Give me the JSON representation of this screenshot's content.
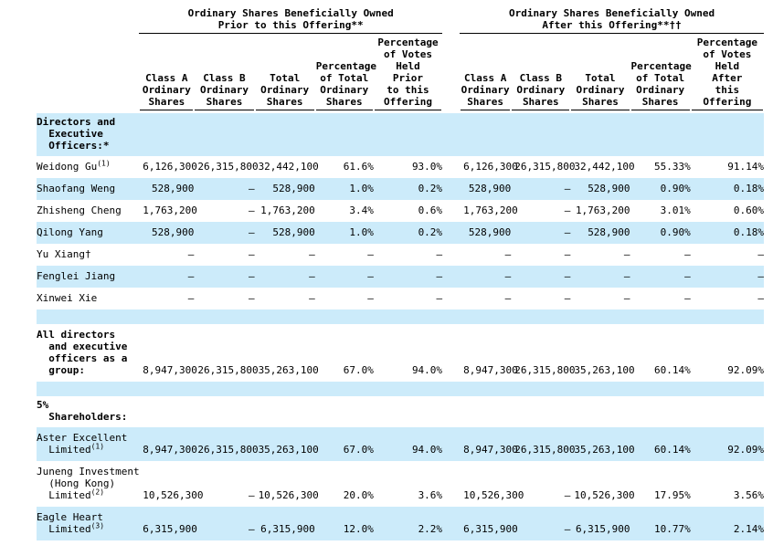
{
  "table": {
    "colors": {
      "row_shade": "#CCEBFA",
      "text": "#000000",
      "rule": "#000000"
    },
    "group_headers": [
      {
        "title": "Ordinary Shares Beneficially Owned\nPrior to this Offering**"
      },
      {
        "title": "Ordinary Shares Beneficially Owned\nAfter this Offering**††"
      }
    ],
    "columns": [
      "Class A\nOrdinary\nShares",
      "Class B\nOrdinary\nShares",
      "Total\nOrdinary\nShares",
      "Percentage\nof Total\nOrdinary\nShares",
      "Percentage\nof Votes\nHeld\nPrior\nto this\nOffering",
      "Class A\nOrdinary\nShares",
      "Class B\nOrdinary\nShares",
      "Total\nOrdinary\nShares",
      "Percentage\nof Total\nOrdinary\nShares",
      "Percentage\nof Votes\nHeld\nAfter\nthis\nOffering"
    ],
    "rows": [
      {
        "type": "section",
        "shade": true,
        "bold": true,
        "name": "Directors and\n  Executive\n  Officers:*",
        "sup": "",
        "cells": [
          "",
          "",
          "",
          "",
          "",
          "",
          "",
          "",
          "",
          ""
        ]
      },
      {
        "type": "data",
        "shade": false,
        "bold": false,
        "name": "Weidong Gu",
        "sup": "(1)",
        "cells": [
          "6,126,300",
          "26,315,800",
          "32,442,100",
          "61.6%",
          "93.0%",
          "6,126,300",
          "26,315,800",
          "32,442,100",
          "55.33%",
          "91.14%"
        ]
      },
      {
        "type": "data",
        "shade": true,
        "bold": false,
        "name": "Shaofang Weng",
        "sup": "",
        "cells": [
          "528,900",
          "—",
          "528,900",
          "1.0%",
          "0.2%",
          "528,900",
          "—",
          "528,900",
          "0.90%",
          "0.18%"
        ]
      },
      {
        "type": "data",
        "shade": false,
        "bold": false,
        "name": "Zhisheng Cheng",
        "sup": "",
        "cells": [
          "1,763,200",
          "—",
          "1,763,200",
          "3.4%",
          "0.6%",
          "1,763,200",
          "—",
          "1,763,200",
          "3.01%",
          "0.60%"
        ]
      },
      {
        "type": "data",
        "shade": true,
        "bold": false,
        "name": "Qilong Yang",
        "sup": "",
        "cells": [
          "528,900",
          "—",
          "528,900",
          "1.0%",
          "0.2%",
          "528,900",
          "—",
          "528,900",
          "0.90%",
          "0.18%"
        ]
      },
      {
        "type": "data",
        "shade": false,
        "bold": false,
        "name": "Yu Xiang†",
        "sup": "",
        "cells": [
          "—",
          "—",
          "—",
          "—",
          "—",
          "—",
          "—",
          "—",
          "—",
          "—"
        ]
      },
      {
        "type": "data",
        "shade": true,
        "bold": false,
        "name": "Fenglei Jiang",
        "sup": "",
        "cells": [
          "—",
          "—",
          "—",
          "—",
          "—",
          "—",
          "—",
          "—",
          "—",
          "—"
        ]
      },
      {
        "type": "data",
        "shade": false,
        "bold": false,
        "name": "Xinwei Xie",
        "sup": "",
        "cells": [
          "—",
          "—",
          "—",
          "—",
          "—",
          "—",
          "—",
          "—",
          "—",
          "—"
        ]
      },
      {
        "type": "spacer",
        "shade": true
      },
      {
        "type": "data",
        "shade": false,
        "bold": true,
        "name": "All directors\n  and executive\n  officers as a\n  group:",
        "sup": "",
        "cells": [
          "8,947,300",
          "26,315,800",
          "35,263,100",
          "67.0%",
          "94.0%",
          "8,947,300",
          "26,315,800",
          "35,263,100",
          "60.14%",
          "92.09%"
        ]
      },
      {
        "type": "spacer",
        "shade": true
      },
      {
        "type": "section",
        "shade": false,
        "bold": true,
        "name": "5%\n  Shareholders:",
        "sup": "",
        "cells": [
          "",
          "",
          "",
          "",
          "",
          "",
          "",
          "",
          "",
          ""
        ]
      },
      {
        "type": "data",
        "shade": true,
        "bold": false,
        "name": "Aster Excellent\n  Limited",
        "sup": "(1)",
        "cells": [
          "8,947,300",
          "26,315,800",
          "35,263,100",
          "67.0%",
          "94.0%",
          "8,947,300",
          "26,315,800",
          "35,263,100",
          "60.14%",
          "92.09%"
        ]
      },
      {
        "type": "data",
        "shade": false,
        "bold": false,
        "name": "Juneng Investment\n  (Hong Kong)\n  Limited",
        "sup": "(2)",
        "cells": [
          "10,526,300",
          "—",
          "10,526,300",
          "20.0%",
          "3.6%",
          "10,526,300",
          "—",
          "10,526,300",
          "17.95%",
          "3.56%"
        ]
      },
      {
        "type": "data",
        "shade": true,
        "bold": false,
        "name": "Eagle Heart\n  Limited",
        "sup": "(3)",
        "cells": [
          "6,315,900",
          "—",
          "6,315,900",
          "12.0%",
          "2.2%",
          "6,315,900",
          "—",
          "6,315,900",
          "10.77%",
          "2.14%"
        ]
      }
    ]
  }
}
